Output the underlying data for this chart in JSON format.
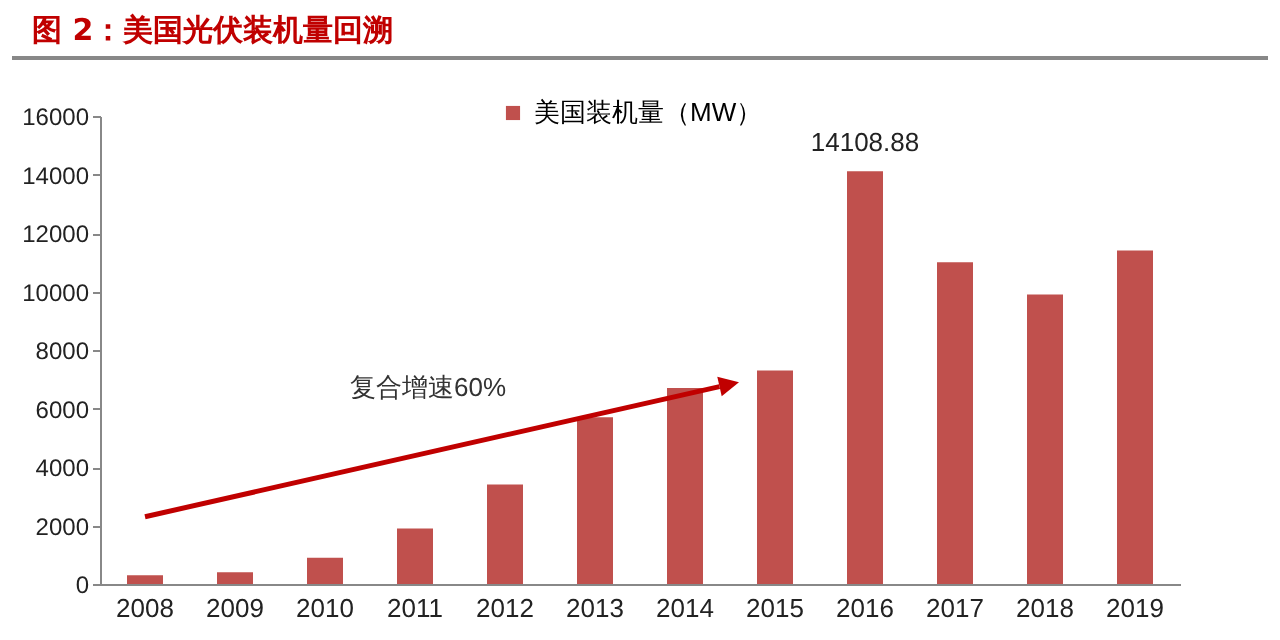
{
  "chart_data": {
    "type": "bar",
    "title": "图 2：美国光伏装机量回溯",
    "categories": [
      "2008",
      "2009",
      "2010",
      "2011",
      "2012",
      "2013",
      "2014",
      "2015",
      "2016",
      "2017",
      "2018",
      "2019"
    ],
    "series": [
      {
        "name": "美国装机量（MW）",
        "color": "#c0504d",
        "values": [
          300,
          400,
          900,
          1900,
          3400,
          5700,
          6700,
          7300,
          14108.88,
          11000,
          9900,
          11400
        ],
        "value_labels": [
          null,
          null,
          null,
          null,
          null,
          null,
          null,
          null,
          "14108.88",
          null,
          null,
          null
        ]
      }
    ],
    "annotations": [
      "复合增速60%"
    ],
    "ylim": [
      0,
      16000
    ],
    "yticks": [
      0,
      2000,
      4000,
      6000,
      8000,
      10000,
      12000,
      14000,
      16000
    ],
    "grid": false,
    "legend": "top"
  }
}
